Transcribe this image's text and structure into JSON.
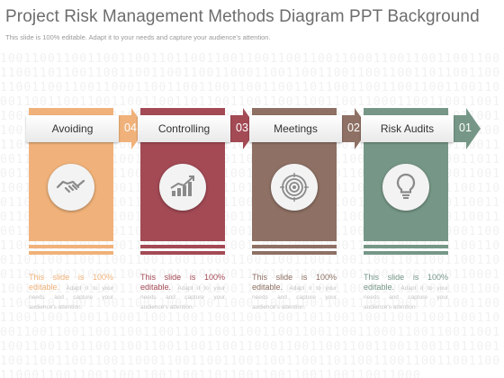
{
  "header": {
    "title": "Project Risk Management Methods Diagram PPT Background",
    "subtitle": "This slide is 100% editable. Adapt it to your needs and capture your audience's attention."
  },
  "background_pattern": "10011001100110011001101100110011001100110011000110011001100110011001101100110011001100110011000110011001100110011001101100110011001100110011000110011001100110011001101100110011001100110011000110011001100110011001101100110011001100110011000110011001100110011001101100110011001100110011000110011001100110011001101100110011001100110011000110011001100110011001101100110011001100110011000110011001100110011001101100110011001100110011000110011001100110011001101100110011001100110011000110011001100110011001101100110011001100110011000110011001100110011001101100110011001100110011000110011001100110011001101100110011001100110011000110011001100110011001101100110011001100110011000110011001100110011001101100110011001100110011000110011001100110011001101100110011001100110011000110011001100110011001101100110011001100110011000110011001100110011001101100110011001100110011000110011001100110011001101100110011001100110011000110011001100110011001101100110011001100110011000110011001100110011001101100110011001100110011000110011001100110011001101100110011001100110011000110011001100110011001101100110011001100110011000110011001100110011001101100110011001100110011000110011001100110011001101100110011001100110011000110011001100110011001101100110011001100110011000110011001100110011001101100110011001100110011000110011001100110011001101100110011001100110011000110011001100110011001101100110011001100110011000110011001100110011001101100110011001100110011000",
  "steps": [
    {
      "label": "Avoiding",
      "number": "04",
      "icon": "handshake-icon",
      "color": "#f0b27a",
      "dark": "#e8a064",
      "desc_lead": "This slide is 100% editable.",
      "desc_rest": "Adapt it to your needs and capture your audience's attention."
    },
    {
      "label": "Controlling",
      "number": "03",
      "icon": "growth-chart-icon",
      "color": "#a34a55",
      "dark": "#8e3a45",
      "desc_lead": "This slide is 100% editable.",
      "desc_rest": "Adapt it to your needs and capture your audience's attention."
    },
    {
      "label": "Meetings",
      "number": "02",
      "icon": "target-icon",
      "color": "#8e7064",
      "dark": "#7b5f54",
      "desc_lead": "This slide is 100% editable.",
      "desc_rest": "Adapt it to your needs and capture your audience's attention."
    },
    {
      "label": "Risk Audits",
      "number": "01",
      "icon": "lightbulb-icon",
      "color": "#769787",
      "dark": "#628474",
      "desc_lead": "This slide is 100% editable.",
      "desc_rest": "Adapt it to your needs and capture your audience's attention."
    }
  ]
}
